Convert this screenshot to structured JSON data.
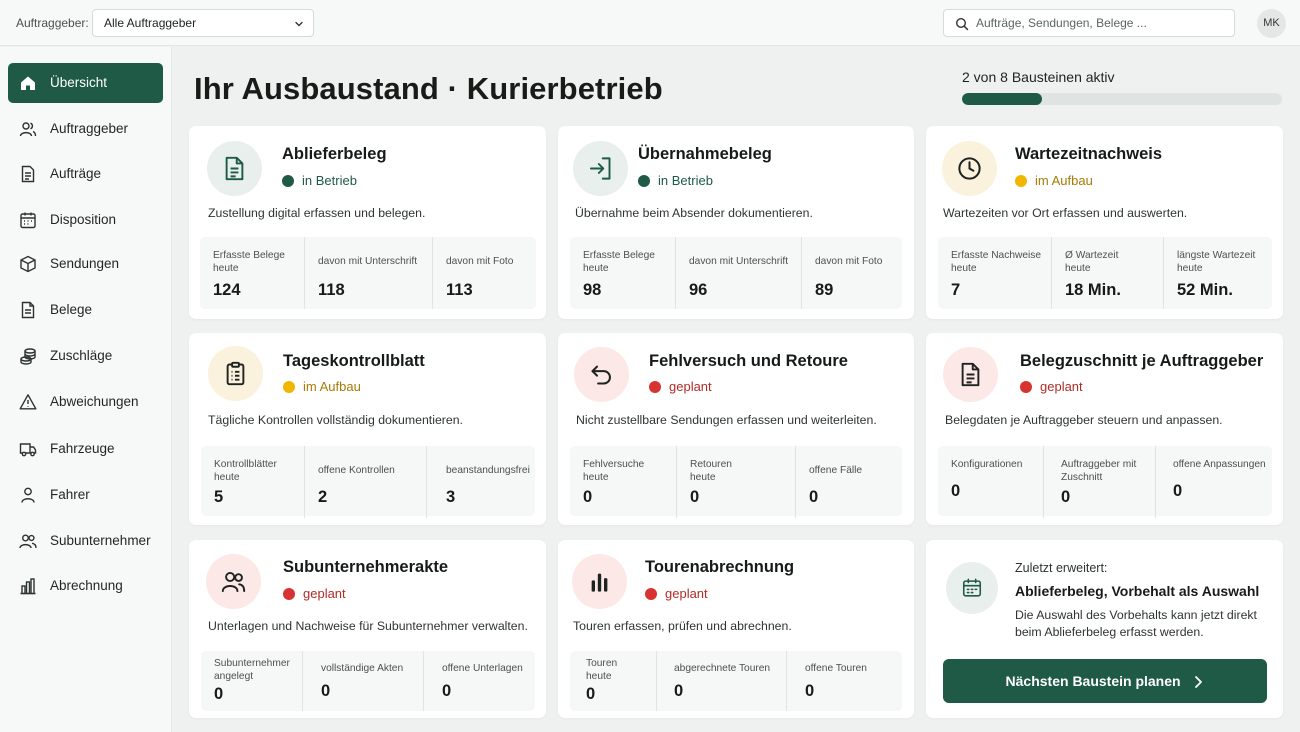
{
  "topbar": {
    "client_label": "Auftraggeber:",
    "client_select_value": "Alle Auftraggeber",
    "search_placeholder": "Aufträge, Sendungen, Belege ...",
    "avatar_initials": "MK"
  },
  "sidebar": {
    "items": [
      {
        "label": "Übersicht",
        "icon": "home-icon",
        "active": true
      },
      {
        "label": "Auftraggeber",
        "icon": "users-icon"
      },
      {
        "label": "Aufträge",
        "icon": "document-icon"
      },
      {
        "label": "Disposition",
        "icon": "calendar-icon"
      },
      {
        "label": "Sendungen",
        "icon": "package-icon"
      },
      {
        "label": "Belege",
        "icon": "receipt-icon"
      },
      {
        "label": "Zuschläge",
        "icon": "coins-icon"
      },
      {
        "label": "Abweichungen",
        "icon": "warning-icon"
      },
      {
        "label": "Fahrzeuge",
        "icon": "truck-icon"
      },
      {
        "label": "Fahrer",
        "icon": "person-icon"
      },
      {
        "label": "Subunternehmer",
        "icon": "group-icon"
      },
      {
        "label": "Abrechnung",
        "icon": "bar-chart-icon"
      }
    ]
  },
  "header": {
    "title": "Ihr Ausbaustand · Kurierbetrieb",
    "progress_text": "2 von 8 Bausteinen aktiv",
    "progress_fraction": 0.25
  },
  "colors": {
    "accent": "#1e5a46",
    "status_active": "#1e5a46",
    "status_building": "#f1b600",
    "status_planned": "#d73330"
  },
  "modules": [
    {
      "title": "Ablieferbeleg",
      "status": "in Betrieb",
      "icon": "document-icon",
      "description": "Zustellung digital erfassen und belegen.",
      "stats": [
        {
          "label": "Erfasste Belege heute",
          "value": "124"
        },
        {
          "label": "davon mit Unterschrift",
          "value": "118"
        },
        {
          "label": "davon mit Foto",
          "value": "113"
        }
      ]
    },
    {
      "title": "Übernahmebeleg",
      "status": "in Betrieb",
      "icon": "sign-in-icon",
      "description": "Übernahme beim Absender dokumentieren.",
      "stats": [
        {
          "label": "Erfasste Belege heute",
          "value": "98"
        },
        {
          "label": "davon mit Unterschrift",
          "value": "96"
        },
        {
          "label": "davon mit Foto",
          "value": "89"
        }
      ]
    },
    {
      "title": "Wartezeitnachweis",
      "status": "im Aufbau",
      "icon": "clock-icon",
      "description": "Wartezeiten vor Ort erfassen und auswerten.",
      "stats": [
        {
          "label": "Erfasste Nachweise heute",
          "value": "7"
        },
        {
          "label": "Ø Wartezeit heute",
          "value": "18 Min."
        },
        {
          "label": "längste Wartezeit heute",
          "value": "52 Min."
        }
      ]
    },
    {
      "title": "Tageskontrollblatt",
      "status": "im Aufbau",
      "icon": "clipboard-icon",
      "description": "Tägliche Kontrollen vollständig dokumentieren.",
      "stats": [
        {
          "label": "Kontrollblätter heute",
          "value": "5"
        },
        {
          "label": "offene Kontrollen",
          "value": "2"
        },
        {
          "label": "beanstandungsfrei",
          "value": "3"
        }
      ]
    },
    {
      "title": "Fehlversuch und Retoure",
      "status": "geplant",
      "icon": "return-arrow-icon",
      "description": "Nicht zustellbare Sendungen erfassen und weiterleiten.",
      "stats": [
        {
          "label": "Fehlversuche heute",
          "value": "0"
        },
        {
          "label": "Retouren heute",
          "value": "0"
        },
        {
          "label": "offene Fälle",
          "value": "0"
        }
      ]
    },
    {
      "title": "Belegzuschnitt je Auftraggeber",
      "status": "geplant",
      "icon": "document-icon",
      "description": "Belegdaten je Auftraggeber steuern und anpassen.",
      "stats": [
        {
          "label": "Konfigurationen",
          "value": "0"
        },
        {
          "label": "Auftraggeber mit Zuschnitt",
          "value": "0"
        },
        {
          "label": "offene Anpassungen",
          "value": "0"
        }
      ]
    },
    {
      "title": "Subunternehmerakte",
      "status": "geplant",
      "icon": "group-icon",
      "description": "Unterlagen und Nachweise für Subunternehmer verwalten.",
      "stats": [
        {
          "label": "Subunternehmer angelegt",
          "value": "0"
        },
        {
          "label": "vollständige Akten",
          "value": "0"
        },
        {
          "label": "offene Unterlagen",
          "value": "0"
        }
      ]
    },
    {
      "title": "Tourenabrechnung",
      "status": "geplant",
      "icon": "bar-chart-icon",
      "description": "Touren erfassen, prüfen und abrechnen.",
      "stats": [
        {
          "label": "Touren heute",
          "value": "0"
        },
        {
          "label": "abgerechnete Touren",
          "value": "0"
        },
        {
          "label": "offene Touren",
          "value": "0"
        }
      ]
    }
  ],
  "last_extended": {
    "label": "Zuletzt erweitert:",
    "title": "Ablieferbeleg, Vorbehalt als Auswahl",
    "text": "Die Auswahl des Vorbehalts kann jetzt direkt beim Ablieferbeleg erfasst werden.",
    "icon": "calendar-icon",
    "button_label": "Nächsten Baustein planen"
  }
}
